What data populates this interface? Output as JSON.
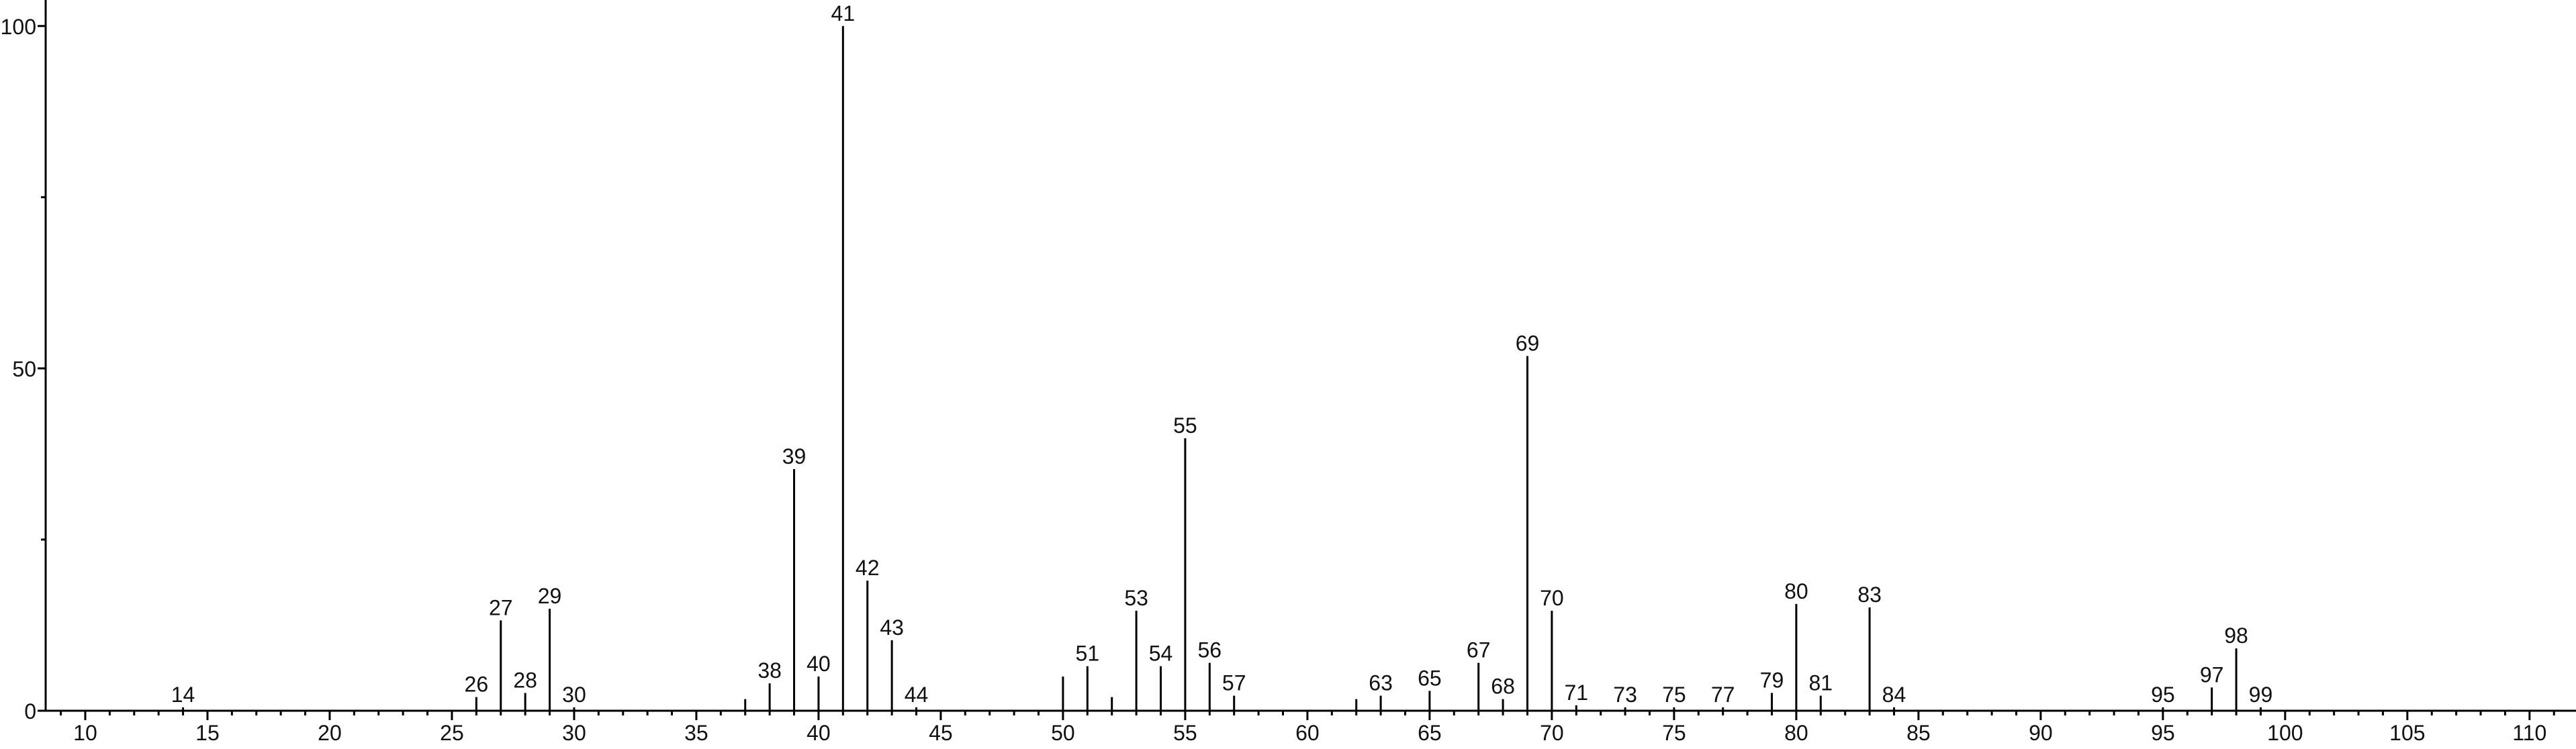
{
  "chart_data": {
    "type": "stem",
    "x": [
      14,
      26,
      27,
      28,
      29,
      30,
      37,
      38,
      39,
      40,
      41,
      42,
      43,
      44,
      50,
      51,
      52,
      53,
      54,
      55,
      56,
      57,
      62,
      63,
      65,
      67,
      68,
      69,
      70,
      71,
      73,
      75,
      77,
      79,
      80,
      81,
      83,
      84,
      95,
      97,
      98,
      99
    ],
    "values": [
      0.5,
      2,
      13.2,
      2.6,
      14.9,
      0.5,
      1.7,
      4,
      35.3,
      5,
      100,
      19,
      10.3,
      0.5,
      5,
      6.5,
      2,
      14.6,
      6.5,
      39.8,
      7,
      2.2,
      1.7,
      2.2,
      2.9,
      7,
      1.7,
      51.8,
      14.6,
      0.8,
      0.5,
      0.5,
      0.5,
      2.6,
      15.6,
      2.2,
      15.1,
      0.5,
      0.5,
      3.4,
      9.1,
      0.5
    ],
    "labels": [
      "14",
      "26",
      "27",
      "28",
      "29",
      "30",
      null,
      "38",
      "39",
      "40",
      "41",
      "42",
      "43",
      "44",
      null,
      "51",
      null,
      "53",
      "54",
      "55",
      "56",
      "57",
      null,
      "63",
      "65",
      "67",
      "68",
      "69",
      "70",
      "71",
      "73",
      "75",
      "77",
      "79",
      "80",
      "81",
      "83",
      "84",
      "95",
      "97",
      "98",
      "99"
    ],
    "color": "#000000",
    "xlim": [
      8.38,
      111.9
    ],
    "ylim": [
      0,
      103.8
    ],
    "xticks": [
      10,
      15,
      20,
      25,
      30,
      35,
      40,
      45,
      50,
      55,
      60,
      65,
      70,
      75,
      80,
      85,
      90,
      95,
      100,
      105,
      110
    ],
    "xminorticks": [
      9,
      11,
      12,
      13,
      14,
      16,
      17,
      18,
      19,
      21,
      22,
      23,
      24,
      26,
      27,
      28,
      29,
      31,
      32,
      33,
      34,
      36,
      37,
      38,
      39,
      41,
      42,
      43,
      44,
      46,
      47,
      48,
      49,
      51,
      52,
      53,
      54,
      56,
      57,
      58,
      59,
      61,
      62,
      63,
      64,
      66,
      67,
      68,
      69,
      71,
      72,
      73,
      74,
      76,
      77,
      78,
      79,
      81,
      82,
      83,
      84,
      86,
      87,
      88,
      89,
      91,
      92,
      93,
      94,
      96,
      97,
      98,
      99,
      101,
      102,
      103,
      104,
      106,
      107,
      108,
      109,
      111
    ],
    "yticks": [
      0,
      50,
      100
    ],
    "yminorticks": [
      25,
      75
    ]
  }
}
